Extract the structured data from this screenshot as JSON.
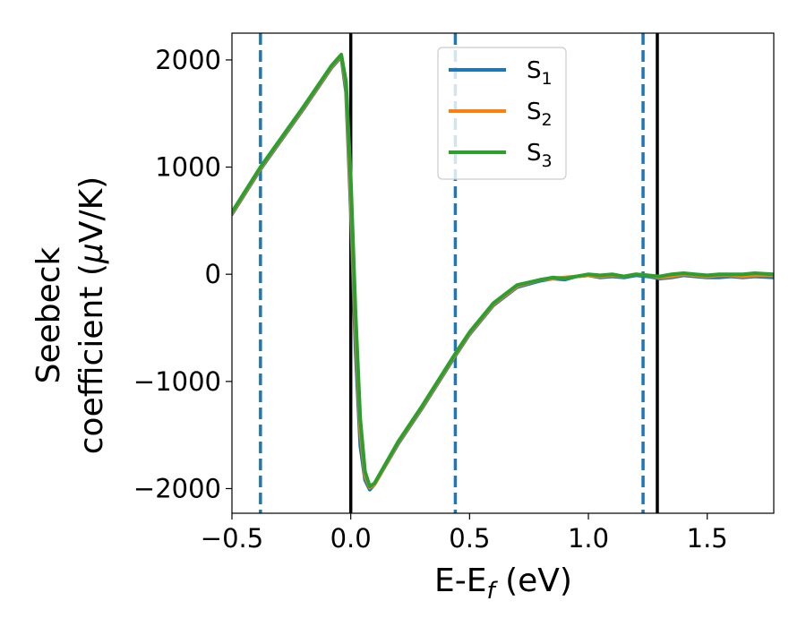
{
  "chart_data": {
    "type": "line",
    "title": "",
    "xlabel": "E-E$_f$ (eV)",
    "xlabel_parts": {
      "base": "E-E",
      "sub": "f",
      "rest": " (eV)"
    },
    "ylabel_line1": "Seebeck",
    "ylabel_line2_prefix": "coefficient  (",
    "ylabel_mu": "μ",
    "ylabel_line2_suffix": "V/K)",
    "xlim": [
      -0.5,
      1.78
    ],
    "ylim": [
      -2230,
      2250
    ],
    "x_ticks": [
      -0.5,
      0.0,
      0.5,
      1.0,
      1.5
    ],
    "x_tick_labels": [
      "−0.5",
      "0.0",
      "0.5",
      "1.0",
      "1.5"
    ],
    "y_ticks": [
      -2000,
      -1000,
      0,
      1000,
      2000
    ],
    "y_tick_labels": [
      "−2000",
      "−1000",
      "0",
      "1000",
      "2000"
    ],
    "grid": false,
    "legend_position": "upper-center",
    "legend": [
      {
        "base": "S",
        "sub": "1",
        "color": "#1f77b4"
      },
      {
        "base": "S",
        "sub": "2",
        "color": "#ff7f0e"
      },
      {
        "base": "S",
        "sub": "3",
        "color": "#2ca02c"
      }
    ],
    "vlines": [
      {
        "x": -0.38,
        "style": "dashed",
        "color": "#1f77b4"
      },
      {
        "x": 0.0,
        "style": "solid",
        "color": "#000000"
      },
      {
        "x": 0.44,
        "style": "dashed",
        "color": "#1f77b4"
      },
      {
        "x": 1.23,
        "style": "dashed",
        "color": "#1f77b4"
      },
      {
        "x": 1.29,
        "style": "solid",
        "color": "#000000"
      }
    ],
    "series": [
      {
        "name": "S1",
        "color": "#1f77b4",
        "x": [
          -0.5,
          -0.38,
          -0.2,
          -0.08,
          -0.04,
          -0.02,
          0.0,
          0.02,
          0.04,
          0.06,
          0.08,
          0.1,
          0.2,
          0.3,
          0.44,
          0.5,
          0.6,
          0.7,
          0.8,
          0.85,
          0.9,
          0.95,
          1.0,
          1.05,
          1.1,
          1.15,
          1.2,
          1.25,
          1.3,
          1.35,
          1.4,
          1.45,
          1.5,
          1.55,
          1.6,
          1.65,
          1.7,
          1.78
        ],
        "y": [
          560,
          980,
          1540,
          1930,
          2030,
          1700,
          600,
          -700,
          -1600,
          -1920,
          -2010,
          -1960,
          -1580,
          -1250,
          -760,
          -560,
          -290,
          -120,
          -60,
          -40,
          -50,
          -20,
          -10,
          -30,
          -20,
          -30,
          -10,
          -20,
          -40,
          -30,
          -10,
          -20,
          -30,
          -30,
          -20,
          -30,
          -20,
          -30
        ]
      },
      {
        "name": "S2",
        "color": "#ff7f0e",
        "x": [
          -0.5,
          -0.38,
          -0.2,
          -0.08,
          -0.04,
          -0.02,
          0.0,
          0.02,
          0.04,
          0.06,
          0.08,
          0.1,
          0.2,
          0.3,
          0.44,
          0.5,
          0.6,
          0.7,
          0.8,
          0.85,
          0.9,
          0.95,
          1.0,
          1.05,
          1.1,
          1.15,
          1.2,
          1.25,
          1.3,
          1.35,
          1.4,
          1.45,
          1.5,
          1.55,
          1.6,
          1.65,
          1.7,
          1.78
        ],
        "y": [
          570,
          990,
          1550,
          1940,
          2040,
          1760,
          750,
          -500,
          -1450,
          -1880,
          -1990,
          -1960,
          -1570,
          -1240,
          -750,
          -550,
          -280,
          -110,
          -50,
          -40,
          -30,
          -20,
          -10,
          -20,
          -10,
          -20,
          0,
          -10,
          -30,
          -20,
          0,
          -10,
          -20,
          -10,
          -10,
          -20,
          -10,
          -10
        ]
      },
      {
        "name": "S3",
        "color": "#2ca02c",
        "x": [
          -0.5,
          -0.38,
          -0.2,
          -0.08,
          -0.04,
          -0.02,
          0.0,
          0.02,
          0.04,
          0.06,
          0.08,
          0.1,
          0.2,
          0.3,
          0.44,
          0.5,
          0.6,
          0.7,
          0.8,
          0.85,
          0.9,
          0.95,
          1.0,
          1.05,
          1.1,
          1.15,
          1.2,
          1.25,
          1.3,
          1.35,
          1.4,
          1.45,
          1.5,
          1.55,
          1.6,
          1.65,
          1.7,
          1.78
        ],
        "y": [
          580,
          1000,
          1560,
          1950,
          2050,
          1800,
          900,
          -350,
          -1350,
          -1840,
          -1980,
          -1950,
          -1560,
          -1230,
          -740,
          -540,
          -270,
          -100,
          -50,
          -30,
          -40,
          -20,
          0,
          -10,
          0,
          -20,
          0,
          -10,
          -20,
          0,
          10,
          0,
          -10,
          0,
          0,
          0,
          10,
          0
        ]
      }
    ]
  }
}
